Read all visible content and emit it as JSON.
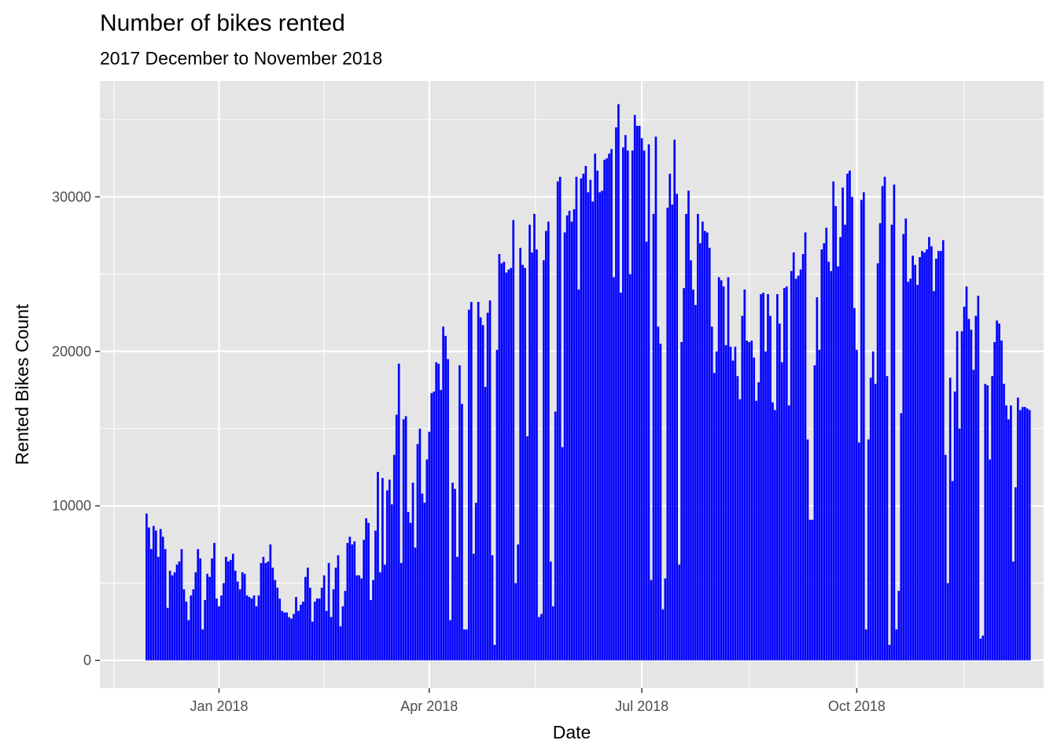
{
  "chart_data": {
    "type": "bar",
    "title": "Number of bikes rented",
    "subtitle": "2017 December to November 2018",
    "xlabel": "Date",
    "ylabel": "Rented Bikes Count",
    "x_start": "2017-12-01",
    "x_end": "2018-11-30",
    "xlim": [
      "2017-11-11",
      "2018-12-20"
    ],
    "ylim": [
      -1800,
      37500
    ],
    "x_ticks": [
      {
        "date": "2018-01-01",
        "label": "Jan 2018"
      },
      {
        "date": "2018-04-01",
        "label": "Apr 2018"
      },
      {
        "date": "2018-07-01",
        "label": "Jul 2018"
      },
      {
        "date": "2018-10-01",
        "label": "Oct 2018"
      }
    ],
    "y_ticks": [
      0,
      10000,
      20000,
      30000
    ],
    "bar_color": "#0000ff",
    "panel_background": "#e5e5e5",
    "grid_color": "#ffffff",
    "grid": true,
    "legend": "none",
    "values": [
      9500,
      8600,
      7200,
      8700,
      8400,
      6700,
      8500,
      8000,
      7200,
      3400,
      5800,
      5500,
      5700,
      6200,
      6400,
      7200,
      4600,
      3800,
      2600,
      4200,
      4600,
      5700,
      7200,
      6600,
      2000,
      3900,
      5600,
      5400,
      6600,
      7600,
      4000,
      3500,
      4200,
      5000,
      6700,
      6400,
      6500,
      6900,
      5800,
      5100,
      4600,
      5700,
      5600,
      4200,
      4100,
      4000,
      4200,
      3500,
      4200,
      6300,
      6700,
      6300,
      6400,
      7500,
      6000,
      5200,
      4700,
      4000,
      3200,
      3100,
      3100,
      2800,
      2700,
      3000,
      4100,
      3200,
      3600,
      3800,
      5400,
      6000,
      4700,
      2500,
      3800,
      4000,
      4000,
      4700,
      5500,
      3200,
      6300,
      2800,
      4600,
      6000,
      6800,
      2200,
      3500,
      4500,
      7600,
      8000,
      7500,
      7700,
      5500,
      5500,
      5300,
      7800,
      9200,
      8900,
      3900,
      5200,
      8400,
      12200,
      5700,
      11800,
      6200,
      11000,
      11700,
      10100,
      13300,
      15900,
      19200,
      6300,
      15600,
      15800,
      9600,
      8900,
      11500,
      7300,
      14000,
      15000,
      10800,
      10200,
      13000,
      14800,
      17300,
      17400,
      19300,
      19200,
      17500,
      21600,
      21000,
      19500,
      2600,
      11500,
      11100,
      6700,
      19100,
      16600,
      2000,
      2000,
      22700,
      23200,
      6900,
      10200,
      23200,
      22200,
      21700,
      17700,
      22500,
      23300,
      6800,
      1000,
      20100,
      26300,
      25700,
      25800,
      25100,
      25300,
      25400,
      28500,
      5000,
      7500,
      26700,
      25600,
      25400,
      14500,
      28200,
      26400,
      28900,
      26600,
      2800,
      3000,
      25900,
      27800,
      28400,
      6400,
      3500,
      16100,
      31000,
      31300,
      13800,
      27700,
      28800,
      29100,
      28400,
      29200,
      31300,
      24000,
      31200,
      31500,
      32000,
      30300,
      31100,
      29700,
      32800,
      31700,
      30300,
      30400,
      32400,
      32500,
      32800,
      33100,
      24800,
      34500,
      36000,
      23800,
      33200,
      34000,
      33000,
      25000,
      33000,
      35300,
      34600,
      34600,
      33800,
      33000,
      27100,
      33400,
      5200,
      28900,
      33900,
      21600,
      20500,
      3300,
      5300,
      29300,
      31500,
      29500,
      33700,
      30200,
      6200,
      20600,
      24100,
      28900,
      30400,
      25900,
      24000,
      23000,
      28900,
      27000,
      28400,
      27800,
      27700,
      26700,
      21600,
      18600,
      20000,
      24800,
      24600,
      24200,
      20400,
      24800,
      20300,
      19400,
      20300,
      18400,
      16900,
      22300,
      24000,
      20700,
      20600,
      20700,
      19600,
      16800,
      18000,
      23700,
      23800,
      20000,
      23700,
      22300,
      16700,
      16200,
      23700,
      21800,
      19300,
      24100,
      24200,
      16500,
      25200,
      26400,
      24700,
      24900,
      25300,
      26300,
      27700,
      14300,
      9100,
      9100,
      19100,
      23500,
      20100,
      26600,
      27000,
      28000,
      25800,
      25200,
      31000,
      29400,
      25500,
      27400,
      30600,
      28200,
      31500,
      31700,
      30000,
      22800,
      20100,
      14100,
      29800,
      30300,
      2000,
      14300,
      18300,
      20000,
      17900,
      25700,
      28300,
      30700,
      31300,
      18400,
      1000,
      28200,
      30800,
      2000,
      4500,
      16000,
      27600,
      28600,
      24500,
      24700,
      26200,
      25600,
      24300,
      26100,
      26500,
      26400,
      26600,
      27400,
      26800,
      23900,
      26000,
      26500,
      26500,
      27200,
      13300,
      5000,
      18300,
      11600,
      17400,
      21300,
      15000,
      21300,
      22900,
      24200,
      22100,
      21400,
      18800,
      22300,
      23600,
      1400,
      1600,
      17900,
      17800,
      13000,
      18400,
      20600,
      22000,
      21800,
      20700,
      17900,
      16500,
      15600,
      16500,
      6400,
      11200,
      17000,
      16200,
      16400,
      16400,
      16300,
      16200
    ]
  }
}
